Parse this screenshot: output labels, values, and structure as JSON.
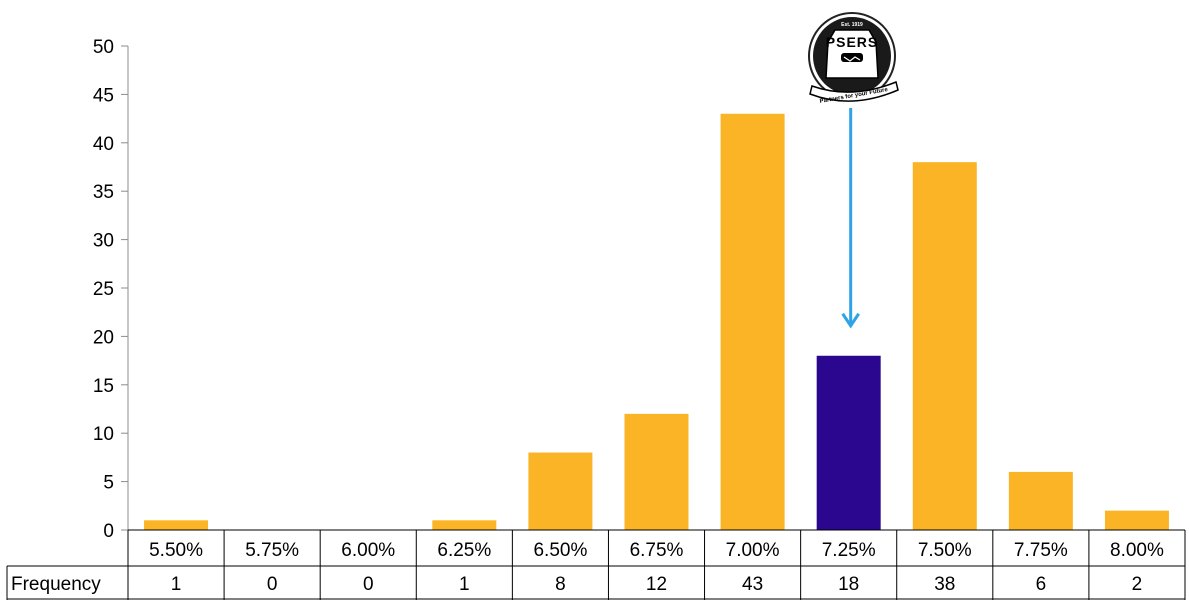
{
  "chart_data": {
    "type": "bar",
    "categories": [
      "5.50%",
      "5.75%",
      "6.00%",
      "6.25%",
      "6.50%",
      "6.75%",
      "7.00%",
      "7.25%",
      "7.50%",
      "7.75%",
      "8.00%"
    ],
    "series": [
      {
        "name": "Frequency",
        "values": [
          1,
          0,
          0,
          1,
          8,
          12,
          43,
          18,
          38,
          6,
          2
        ]
      }
    ],
    "ylim": [
      0,
      50
    ],
    "yticks": [
      0,
      5,
      10,
      15,
      20,
      25,
      30,
      35,
      40,
      45,
      50
    ],
    "grid": false,
    "highlight_category": "7.25%",
    "data_table": true,
    "colors": {
      "bar": "#FBB426",
      "highlight": "#2A078E",
      "arrow": "#2EA3E6",
      "axis": "#8C8C8C"
    }
  },
  "logo": {
    "name": "PSERS",
    "top_text": "Est. 1919",
    "banner_text": "Partners for your Future"
  }
}
